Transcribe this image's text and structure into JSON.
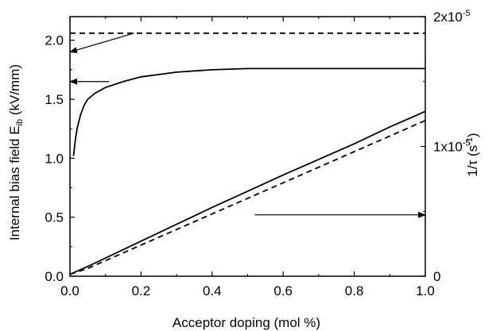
{
  "chart_data": {
    "type": "line",
    "xlabel": "Acceptor doping (mol %)",
    "ylabel_left": {
      "main": "Internal bias field E",
      "sub": "ib",
      "unit": " (kV/mm)"
    },
    "ylabel_right": {
      "pre": "1/τ  (s",
      "sup": "-1",
      "post": ")"
    },
    "xlim": [
      0.0,
      1.0
    ],
    "ylim_left": [
      0.0,
      2.2
    ],
    "ylim_right": [
      0,
      2e-05
    ],
    "x_ticks": [
      "0.0",
      "0.2",
      "0.4",
      "0.6",
      "0.8",
      "1.0"
    ],
    "y_left_ticks": [
      "0.0",
      "0.5",
      "1.0",
      "1.5",
      "2.0"
    ],
    "y_right_ticks": [
      {
        "value": 0,
        "mantissa": "0",
        "exp": ""
      },
      {
        "value": 1e-05,
        "mantissa": "1x10",
        "exp": "-5"
      },
      {
        "value": 2e-05,
        "mantissa": "2x10",
        "exp": "-5"
      }
    ],
    "grid": false,
    "legend": "none",
    "series": [
      {
        "axis": "left",
        "style": "dashed",
        "x": [
          0.0,
          1.0
        ],
        "y": [
          2.06,
          2.06
        ]
      },
      {
        "axis": "left",
        "style": "solid",
        "x": [
          0.01,
          0.015,
          0.02,
          0.03,
          0.04,
          0.05,
          0.07,
          0.1,
          0.15,
          0.2,
          0.25,
          0.3,
          0.4,
          0.5,
          0.6,
          0.7,
          0.8,
          0.9,
          1.0
        ],
        "y": [
          1.02,
          1.15,
          1.25,
          1.37,
          1.45,
          1.5,
          1.55,
          1.6,
          1.65,
          1.69,
          1.71,
          1.73,
          1.75,
          1.76,
          1.76,
          1.76,
          1.76,
          1.76,
          1.76
        ]
      },
      {
        "axis": "right",
        "style": "solid",
        "x": [
          0.0,
          0.05,
          0.1,
          0.2,
          0.3,
          0.4,
          0.5,
          0.6,
          0.7,
          0.8,
          0.9,
          1.0
        ],
        "y": [
          1.5e-07,
          7.5e-07,
          1.4e-06,
          2.7e-06,
          4e-06,
          5.3e-06,
          6.55e-06,
          7.8e-06,
          9e-06,
          1.02e-05,
          1.15e-05,
          1.27e-05
        ]
      },
      {
        "axis": "right",
        "style": "dashed",
        "x": [
          0.0,
          0.05,
          0.1,
          0.2,
          0.3,
          0.4,
          0.5,
          0.6,
          0.7,
          0.8,
          0.9,
          1.0
        ],
        "y": [
          1.5e-07,
          6e-07,
          1.2e-06,
          2.4e-06,
          3.6e-06,
          4.8e-06,
          6e-06,
          7.2e-06,
          8.4e-06,
          9.6e-06,
          1.08e-05,
          1.2e-05
        ]
      }
    ],
    "annotations": [
      {
        "type": "arrow",
        "from": [
          0.18,
          2.06
        ],
        "to": [
          0.0,
          1.9
        ],
        "axis": "left"
      },
      {
        "type": "arrow",
        "from": [
          0.11,
          1.65
        ],
        "to": [
          0.0,
          1.65
        ],
        "axis": "left"
      },
      {
        "type": "arrow",
        "from": [
          0.52,
          1.5e-06
        ],
        "to": [
          1.0,
          1.5e-06
        ],
        "from_axis": "left",
        "from_y": 0.52,
        "to_axis": "right",
        "to_y": 0.52
      }
    ]
  }
}
